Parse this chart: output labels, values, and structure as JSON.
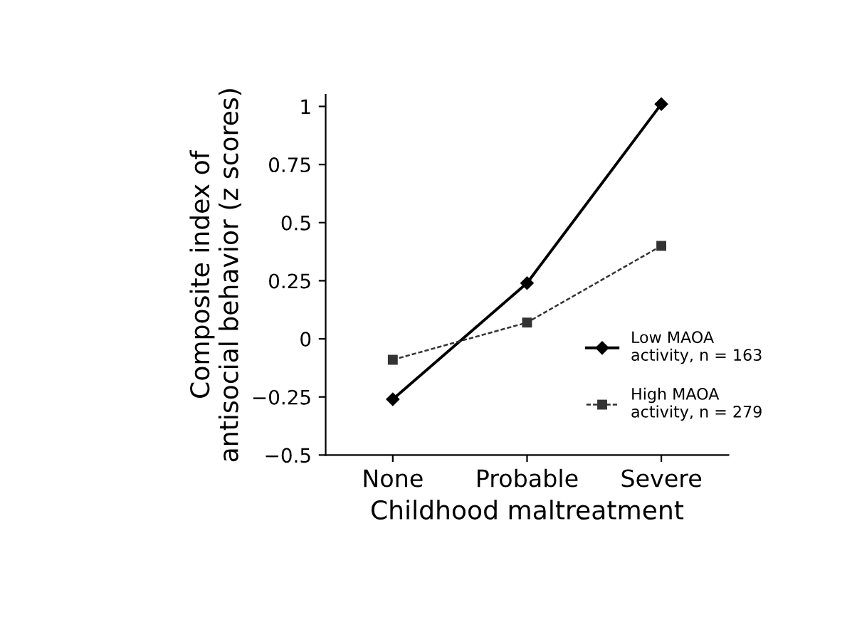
{
  "chart_data": {
    "type": "line",
    "xlabel": "Childhood maltreatment",
    "ylabel": "Composite index of\nantisocial behavior (z scores)",
    "categories": [
      "None",
      "Probable",
      "Severe"
    ],
    "series": [
      {
        "name": "Low MAOA\nactivity, n = 163",
        "color": "#000000",
        "values": [
          -0.26,
          0.24,
          1.01
        ],
        "marker": "diamond",
        "line_style": "solid"
      },
      {
        "name": "High MAOA\nactivity, n = 279",
        "color": "#333333",
        "values": [
          -0.09,
          0.07,
          0.4
        ],
        "marker": "square",
        "line_style": "dashed"
      }
    ],
    "ylim": [
      -0.5,
      1.05
    ],
    "yticks": [
      {
        "value": -0.5,
        "label": "−0.5"
      },
      {
        "value": -0.25,
        "label": "−0.25"
      },
      0,
      0.25,
      0.5,
      0.75,
      1
    ],
    "grid": false,
    "legend": "right"
  }
}
